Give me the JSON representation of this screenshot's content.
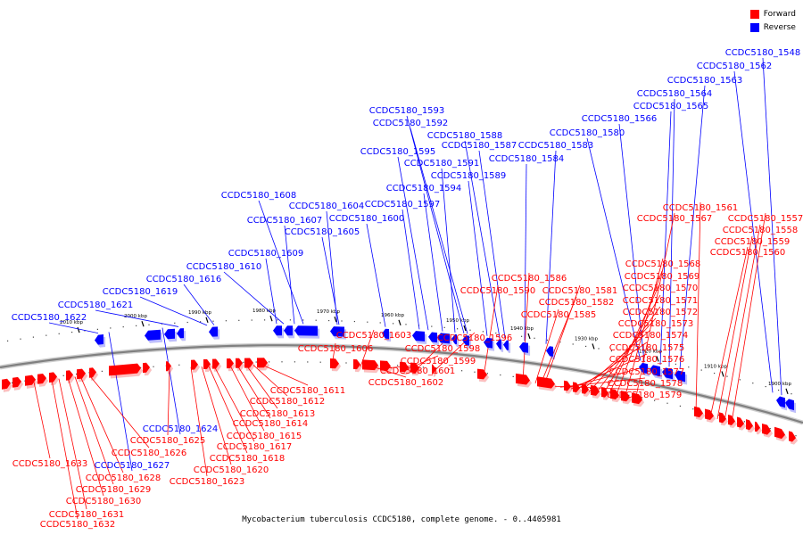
{
  "legend": {
    "forward": "Forward",
    "reverse": "Reverse"
  },
  "colors": {
    "forward": "#ff0000",
    "reverse": "#0000ff",
    "axis": "#888888"
  },
  "caption": "Mycobacterium tuberculosis CCDC5180, complete genome. - 0..4405981",
  "ticks": [
    "1900 kbp",
    "1910 kbp",
    "1920 kbp",
    "1930 kbp",
    "1940 kbp",
    "1950 kbp",
    "1960 kbp",
    "1970 kbp",
    "1980 kbp",
    "1990 kbp",
    "2000 kbp",
    "2010 kbp"
  ],
  "reverse_genes": [
    "CCDC5180_1548",
    "CCDC5180_1562",
    "CCDC5180_1563",
    "CCDC5180_1564",
    "CCDC5180_1565",
    "CCDC5180_1566",
    "CCDC5180_1580",
    "CCDC5180_1583",
    "CCDC5180_1584",
    "CCDC5180_1593",
    "CCDC5180_1592",
    "CCDC5180_1588",
    "CCDC5180_1587",
    "CCDC5180_1595",
    "CCDC5180_1591",
    "CCDC5180_1589",
    "CCDC5180_1594",
    "CCDC5180_1597",
    "CCDC5180_1608",
    "CCDC5180_1604",
    "CCDC5180_1607",
    "CCDC5180_1600",
    "CCDC5180_1605",
    "CCDC5180_1609",
    "CCDC5180_1610",
    "CCDC5180_1616",
    "CCDC5180_1619",
    "CCDC5180_1621",
    "CCDC5180_1622",
    "CCDC5180_1624",
    "CCDC5180_1627"
  ],
  "forward_genes": [
    "CCDC5180_1561",
    "CCDC5180_1567",
    "CCDC5180_1557",
    "CCDC5180_1558",
    "CCDC5180_1559",
    "CCDC5180_1560",
    "CCDC5180_1568",
    "CCDC5180_1569",
    "CCDC5180_1570",
    "CCDC5180_1571",
    "CCDC5180_1572",
    "CCDC5180_1573",
    "CCDC5180_1574",
    "CCDC5180_1575",
    "CCDC5180_1576",
    "CCDC5180_1577",
    "CCDC5180_1578",
    "CCDC5180_1579",
    "CCDC5180_1586",
    "CCDC5180_1590",
    "CCDC5180_1581",
    "CCDC5180_1582",
    "CCDC5180_1585",
    "CCDC5180_1596",
    "CCDC5180_1598",
    "CCDC5180_1599",
    "CCDC5180_1601",
    "CCDC5180_1602",
    "CCDC5180_1603",
    "CCDC5180_1606",
    "CCDC5180_1611",
    "CCDC5180_1612",
    "CCDC5180_1613",
    "CCDC5180_1614",
    "CCDC5180_1615",
    "CCDC5180_1617",
    "CCDC5180_1618",
    "CCDC5180_1620",
    "CCDC5180_1623",
    "CCDC5180_1625",
    "CCDC5180_1626",
    "CCDC5180_1628",
    "CCDC5180_1629",
    "CCDC5180_1630",
    "CCDC5180_1631",
    "CCDC5180_1632",
    "CCDC5180_1633"
  ]
}
